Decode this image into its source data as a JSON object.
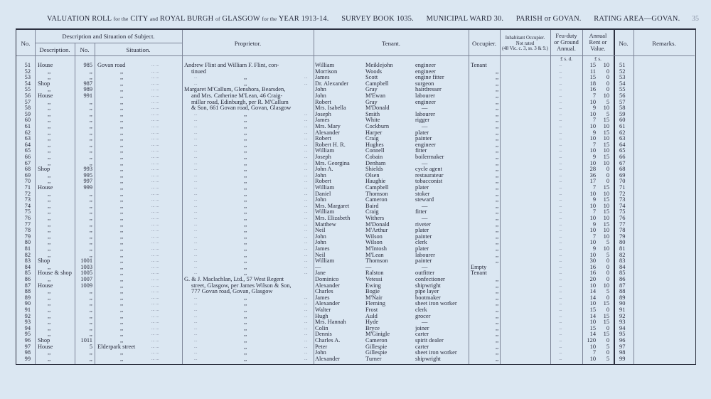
{
  "header": {
    "title_a": "VALUATION ROLL",
    "title_b": "for the",
    "title_c": "CITY",
    "title_d": "and",
    "title_e": "ROYAL BURGH",
    "title_f": "of",
    "title_g": "GLASGOW",
    "title_h": "for the",
    "title_i": "YEAR 1913-14.",
    "survey_book": "SURVEY BOOK 1035.",
    "ward": "MUNICIPAL WARD 30.",
    "parish": "PARISH or GOVAN.",
    "rating_area": "RATING AREA—GOVAN.",
    "page_number": "35"
  },
  "columns": {
    "no": "No.",
    "description_group": "Description and Situation of Subject.",
    "description": "Description.",
    "number": "No.",
    "situation": "Situation.",
    "proprietor": "Proprietor.",
    "tenant": "Tenant.",
    "occupier": "Occupier.",
    "inhabitant_1": "Inhabitant Occupier.",
    "inhabitant_2": "Not rated",
    "inhabitant_3": "(48 Vic. c. 3, ss. 3 & 9.)",
    "feu_1": "Feu-duty",
    "feu_2": "or Ground",
    "feu_3": "Annual.",
    "feu_units": "£ s. d.",
    "rent_1": "Annual",
    "rent_2": "Rent or",
    "rent_3": "Value.",
    "rent_units": "£ s.",
    "no_right": "No.",
    "remarks": "Remarks."
  },
  "rows": [
    [
      "51",
      "House",
      "985",
      "Govan road",
      "Andrew Flint and William F. Flint, con-",
      "William",
      "Meiklejohn",
      "engineer",
      "Tenant",
      "15",
      "10"
    ],
    [
      "52",
      ",,",
      ",,",
      ",,",
      "tinued",
      "Morrison",
      "Woods",
      "engineer",
      ",,",
      "11",
      "0"
    ],
    [
      "53",
      ",,",
      ",,",
      ",,",
      ",,",
      "James",
      "Scott",
      "engine fitter",
      ",,",
      "15",
      "0"
    ],
    [
      "54",
      "Shop",
      "987",
      ",,",
      ",,",
      "Dr. Alexander",
      "Campbell",
      "surgeon",
      ",,",
      "18",
      "0"
    ],
    [
      "55",
      ",,",
      "989",
      ",,",
      "Margaret M'Callum, Glenshora, Bearsden,",
      "John",
      "Gray",
      "hairdresser",
      ",,",
      "16",
      "0"
    ],
    [
      "56",
      "House",
      "991",
      ",,",
      "and Mrs. Catherine M'Lean, 46 Craig-",
      "John",
      "M'Ewan",
      "labourer",
      ",,",
      "7",
      "10"
    ],
    [
      "57",
      ",,",
      ",,",
      ",,",
      "millar road, Edinburgh, per R. M'Callum",
      "Robert",
      "Gray",
      "engineer",
      ",,",
      "10",
      "5"
    ],
    [
      "58",
      ",,",
      ",,",
      ",,",
      "& Son, 661 Govan road, Govan, Glasgow",
      "Mrs. Isabella",
      "M'Donald",
      "—",
      ",,",
      "9",
      "10"
    ],
    [
      "59",
      ",,",
      ",,",
      ",,",
      ",,",
      "Joseph",
      "Smith",
      "labourer",
      ",,",
      "10",
      "5"
    ],
    [
      "60",
      ",,",
      ",,",
      ",,",
      ",,",
      "James",
      "White",
      "rigger",
      ",,",
      "7",
      "15"
    ],
    [
      "61",
      ",,",
      ",,",
      ",,",
      ",,",
      "Mrs. Mary",
      "Cockburn",
      "—",
      ",,",
      "10",
      "10"
    ],
    [
      "62",
      ",,",
      ",,",
      ",,",
      ",,",
      "Alexander",
      "Harper",
      "plater",
      ",,",
      "9",
      "15"
    ],
    [
      "63",
      ",,",
      ",,",
      ",,",
      ",,",
      "Robert",
      "Craig",
      "painter",
      ",,",
      "10",
      "10"
    ],
    [
      "64",
      ",,",
      ",,",
      ",,",
      ",,",
      "Robert H. R.",
      "Hughes",
      "engineer",
      ",,",
      "7",
      "15"
    ],
    [
      "65",
      ",,",
      ",,",
      ",,",
      ",,",
      "William",
      "Connell",
      "fitter",
      ",,",
      "10",
      "10"
    ],
    [
      "66",
      ",,",
      ",,",
      ",,",
      ",,",
      "Joseph",
      "Cobain",
      "boilermaker",
      ",,",
      "9",
      "15"
    ],
    [
      "67",
      ",,",
      ",,",
      ",,",
      ",,",
      "Mrs. Georgina",
      "Denham",
      "—",
      ",,",
      "10",
      "10"
    ],
    [
      "68",
      "Shop",
      "993",
      ",,",
      ",,",
      "John A.",
      "Shields",
      "cycle agent",
      ",,",
      "28",
      "0"
    ],
    [
      "69",
      ",,",
      "995",
      ",,",
      ",,",
      "John",
      "Olsen",
      "restaurateur",
      ",,",
      "36",
      "0"
    ],
    [
      "70",
      ",,",
      "997",
      ",,",
      ",,",
      "Robert",
      "Haughie",
      "tobacconist",
      ",,",
      "17",
      "0"
    ],
    [
      "71",
      "House",
      "999",
      ",,",
      ",,",
      "William",
      "Campbell",
      "plater",
      ",,",
      "7",
      "15"
    ],
    [
      "72",
      ",,",
      ",,",
      ",,",
      ",,",
      "Daniel",
      "Thomson",
      "stoker",
      ",,",
      "10",
      "10"
    ],
    [
      "73",
      ",,",
      ",,",
      ",,",
      ",,",
      "John",
      "Cameron",
      "steward",
      ",,",
      "9",
      "15"
    ],
    [
      "74",
      ",,",
      ",,",
      ",,",
      ",,",
      "Mrs. Margaret",
      "Baird",
      "—",
      ",,",
      "10",
      "10"
    ],
    [
      "75",
      ",,",
      ",,",
      ",,",
      ",,",
      "William",
      "Craig",
      "fitter",
      ",,",
      "7",
      "15"
    ],
    [
      "76",
      ",,",
      ",,",
      ",,",
      ",,",
      "Mrs. Elizabeth",
      "Withers",
      "—",
      ",,",
      "10",
      "10"
    ],
    [
      "77",
      ",,",
      ",,",
      ",,",
      ",,",
      "Matthew",
      "M'Donald",
      "riveter",
      ",,",
      "9",
      "15"
    ],
    [
      "78",
      ",,",
      ",,",
      ",,",
      ",,",
      "Neil",
      "M'Arthur",
      "plater",
      ",,",
      "10",
      "10"
    ],
    [
      "79",
      ",,",
      ",,",
      ",,",
      ",,",
      "John",
      "Wilson",
      "painter",
      ",,",
      "7",
      "10"
    ],
    [
      "80",
      ",,",
      ",,",
      ",,",
      ",,",
      "John",
      "Wilson",
      "clerk",
      ",,",
      "10",
      "5"
    ],
    [
      "81",
      ",,",
      ",,",
      ",,",
      ",,",
      "James",
      "M'Intosh",
      "plater",
      ",,",
      "9",
      "10"
    ],
    [
      "82",
      ",,",
      ",,",
      ",,",
      ",,",
      "Neil",
      "M'Lean",
      "labourer",
      ",,",
      "10",
      "5"
    ],
    [
      "83",
      "Shop",
      "1001",
      ",,",
      ",,",
      "William",
      "Thomson",
      "painter",
      ",,",
      "30",
      "0"
    ],
    [
      "84",
      ",,",
      "1003",
      ",,",
      ",,",
      "—",
      "—",
      "—",
      "Empty",
      "16",
      "0"
    ],
    [
      "85",
      "House & shop",
      "1005",
      ",,",
      ",,",
      "Jane",
      "Ralston",
      "outfitter",
      "Tenant",
      "16",
      "0"
    ],
    [
      "86",
      ",,",
      "1007",
      ",,",
      "G. & J. Maclachlan, Ltd., 57 West Regent",
      "Dominico",
      "Vetessi",
      "confectioner",
      ",,",
      "20",
      "0"
    ],
    [
      "87",
      "House",
      "1009",
      ",,",
      "street, Glasgow, per James Wilson & Son,",
      "Alexander",
      "Ewing",
      "shipwright",
      ",,",
      "10",
      "10"
    ],
    [
      "88",
      ",,",
      ",,",
      ",,",
      "777 Govan road, Govan, Glasgow",
      "Charles",
      "Bogie",
      "pipe layer",
      ",,",
      "14",
      "5"
    ],
    [
      "89",
      ",,",
      ",,",
      ",,",
      ",,",
      "James",
      "M'Nair",
      "bootmaker",
      ",,",
      "14",
      "0"
    ],
    [
      "90",
      ",,",
      ",,",
      ",,",
      ",,",
      "Alexander",
      "Fleming",
      "sheet iron worker",
      ",,",
      "10",
      "15"
    ],
    [
      "91",
      ",,",
      ",,",
      ",,",
      ",,",
      "Walter",
      "Frost",
      "clerk",
      ",,",
      "15",
      "0"
    ],
    [
      "92",
      ",,",
      ",,",
      ",,",
      ",,",
      "Hugh",
      "Auld",
      "grocer",
      ",,",
      "14",
      "15"
    ],
    [
      "93",
      ",,",
      ",,",
      ",,",
      ",,",
      "Mrs. Hannah",
      "Hyde",
      "—",
      ",,",
      "10",
      "15"
    ],
    [
      "94",
      ",,",
      ",,",
      ",,",
      ",,",
      "Colin",
      "Bryce",
      "joiner",
      ",,",
      "15",
      "0"
    ],
    [
      "95",
      ",,",
      ",,",
      ",,",
      ",,",
      "Dennis",
      "M'Ginigle",
      "carter",
      ",,",
      "14",
      "15"
    ],
    [
      "96",
      "Shop",
      "1011",
      ",,",
      ",,",
      "Charles A.",
      "Cameron",
      "spirit dealer",
      ",,",
      "120",
      "0"
    ],
    [
      "97",
      "House",
      "5",
      "Elderpark street",
      ",,",
      "Peter",
      "Gillespie",
      "carter",
      ",,",
      "10",
      "5"
    ],
    [
      "98",
      ",,",
      ",,",
      ",,",
      ",,",
      "John",
      "Gillespie",
      "sheet iron worker",
      ",,",
      "7",
      "0"
    ],
    [
      "99",
      ",,",
      ",,",
      ",,",
      ",,",
      "Alexander",
      "Turner",
      "shipwright",
      ",,",
      "10",
      "5"
    ]
  ]
}
